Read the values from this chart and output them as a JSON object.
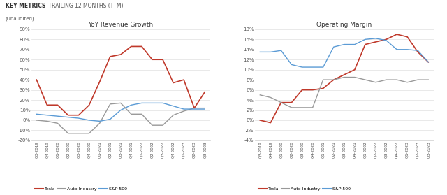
{
  "x_labels": [
    "Q3-2019",
    "Q4-2019",
    "Q1-2020",
    "Q2-2020",
    "Q3-2020",
    "Q4-2020",
    "Q1-2021",
    "Q2-2021",
    "Q3-2021",
    "Q4-2021",
    "Q1-2022",
    "Q2-2022",
    "Q3-2022",
    "Q4-2022",
    "Q1-2023",
    "Q2-2023",
    "Q3-2023"
  ],
  "rev_tesla": [
    40,
    15,
    15,
    5,
    5,
    15,
    38,
    63,
    65,
    73,
    73,
    60,
    60,
    37,
    40,
    12,
    28
  ],
  "rev_auto": [
    0,
    -1,
    -3,
    -13,
    -13,
    -13,
    -3,
    16,
    17,
    6,
    6,
    -5,
    -5,
    5,
    9,
    12,
    12
  ],
  "rev_sp500": [
    6,
    5,
    4,
    3,
    2,
    0,
    -1,
    1,
    10,
    15,
    17,
    17,
    17,
    14,
    11,
    11,
    11
  ],
  "op_tesla": [
    0,
    -0.5,
    3.5,
    3.5,
    6,
    6,
    6.3,
    8,
    9,
    10,
    15,
    15.5,
    16,
    17,
    16.5,
    13.5,
    11.5
  ],
  "op_auto": [
    5,
    4.5,
    3.5,
    2.5,
    2.5,
    2.5,
    8,
    8,
    8.5,
    8.5,
    8,
    7.5,
    8,
    8,
    7.5,
    8,
    8
  ],
  "op_sp500": [
    13.5,
    13.5,
    13.8,
    11,
    10.5,
    10.5,
    10.5,
    14.5,
    15,
    15,
    16,
    16.2,
    15.8,
    14,
    14,
    13.8,
    11.5
  ],
  "tesla_color": "#c0392b",
  "auto_color": "#999999",
  "sp500_color": "#5b9bd5",
  "title_left": "YoY Revenue Growth",
  "title_right": "Operating Margin",
  "header_bold": "KEY METRICS",
  "header_light": " TRAILING 12 MONTHS (TTM)",
  "subheader": "(Unaudited)",
  "ylim_left": [
    -20,
    90
  ],
  "ylim_right": [
    -4,
    18
  ],
  "yticks_left": [
    -20,
    -10,
    0,
    10,
    20,
    30,
    40,
    50,
    60,
    70,
    80,
    90
  ],
  "yticks_right": [
    -4,
    -2,
    0,
    2,
    4,
    6,
    8,
    10,
    12,
    14,
    16,
    18
  ],
  "legend_tesla": "Tesla",
  "legend_auto": "Auto Industry",
  "legend_sp500": "S&P 500",
  "bg_color": "#ffffff",
  "grid_color": "#e0e0e0"
}
